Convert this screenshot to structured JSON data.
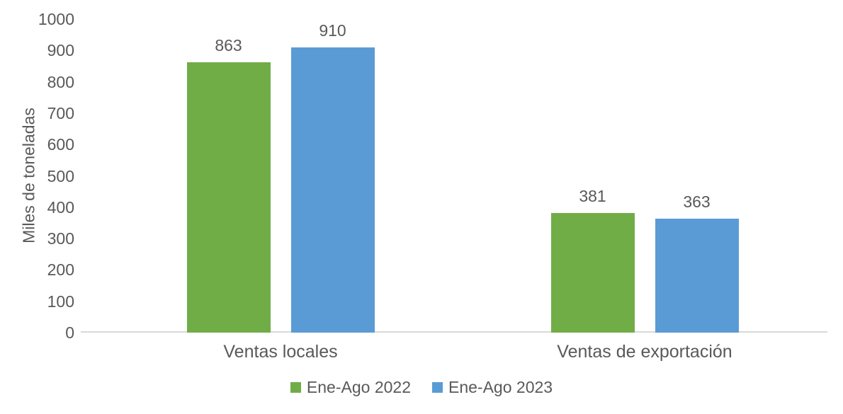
{
  "chart_data": {
    "type": "bar",
    "categories": [
      "Ventas locales",
      "Ventas de exportación"
    ],
    "series": [
      {
        "name": "Ene-Ago 2022",
        "color": "#70AD47",
        "values": [
          863,
          381
        ]
      },
      {
        "name": "Ene-Ago 2023",
        "color": "#5B9BD5",
        "values": [
          910,
          363
        ]
      }
    ],
    "xlabel": "",
    "ylabel": "Miles de toneladas",
    "ylim": [
      0,
      1000
    ],
    "yticks": [
      0,
      100,
      200,
      300,
      400,
      500,
      600,
      700,
      800,
      900,
      1000
    ],
    "grid": false,
    "legend_position": "bottom",
    "data_labels": true
  },
  "colors": {
    "text": "#595959",
    "axis_line": "#D9D9D9",
    "background": "#FFFFFF"
  }
}
